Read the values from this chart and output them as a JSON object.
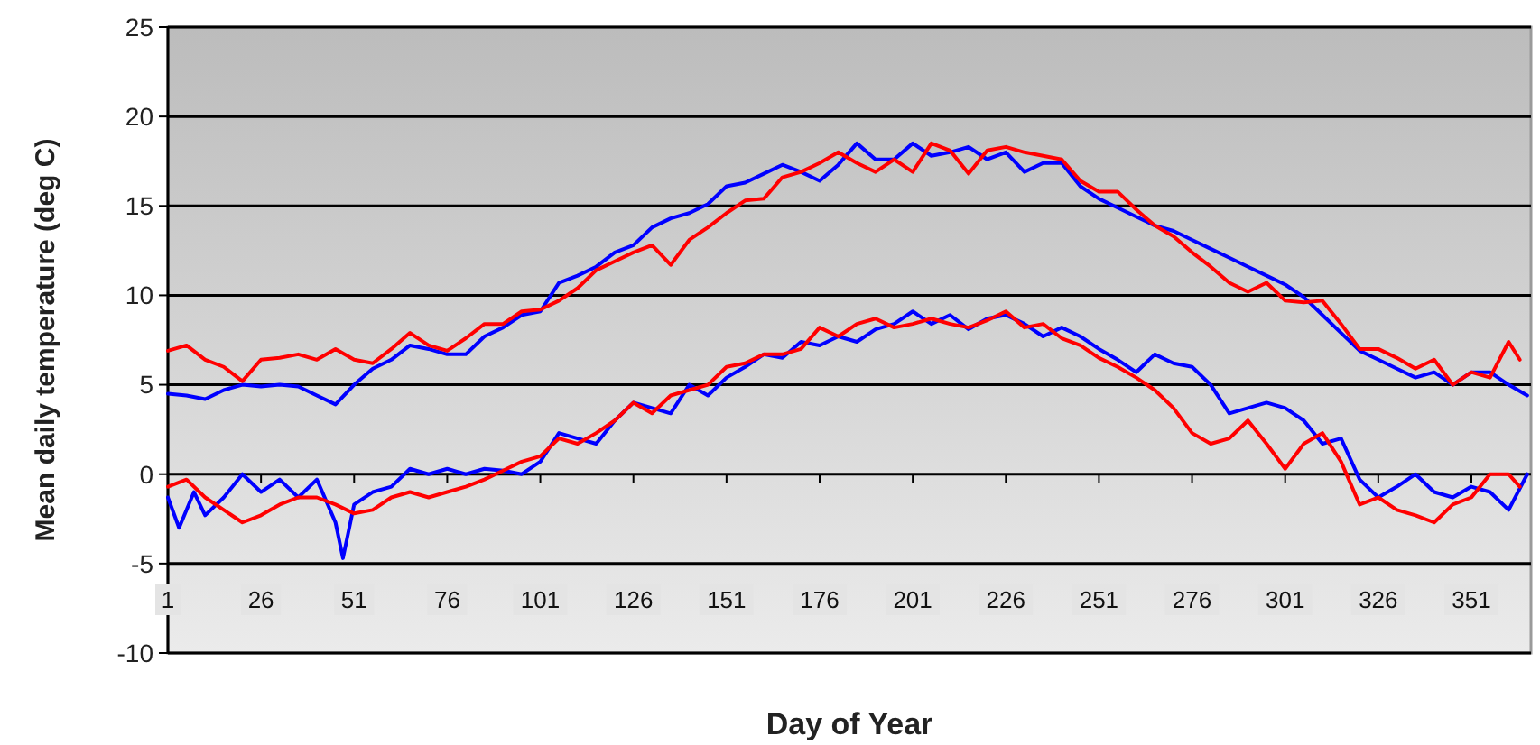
{
  "chart_data": {
    "type": "line",
    "xlabel": "Day of Year",
    "ylabel": "Mean daily temperature (deg C)",
    "xlim": [
      1,
      367
    ],
    "ylim": [
      -10,
      25
    ],
    "xticks": [
      1,
      26,
      51,
      76,
      101,
      126,
      151,
      176,
      201,
      226,
      251,
      276,
      301,
      326,
      351
    ],
    "yticks": [
      -10,
      -5,
      0,
      5,
      10,
      15,
      20,
      25
    ],
    "grid": "y",
    "marker": "none",
    "line_style": "solid",
    "series": [
      {
        "color": "#0000ff",
        "x": [
          1,
          6,
          11,
          16,
          21,
          26,
          31,
          36,
          41,
          46,
          51,
          56,
          61,
          66,
          71,
          76,
          81,
          86,
          91,
          96,
          101,
          106,
          111,
          116,
          121,
          126,
          131,
          136,
          141,
          146,
          151,
          156,
          161,
          166,
          171,
          176,
          181,
          186,
          191,
          196,
          201,
          206,
          211,
          216,
          221,
          226,
          231,
          236,
          241,
          246,
          251,
          256,
          261,
          266,
          271,
          276,
          281,
          286,
          291,
          296,
          301,
          306,
          311,
          316,
          321,
          326,
          331,
          336,
          341,
          346,
          351,
          356,
          361,
          366
        ],
        "values": [
          4.5,
          4.4,
          4.2,
          4.7,
          5.0,
          4.9,
          5.0,
          4.9,
          4.4,
          3.9,
          5.0,
          5.9,
          6.4,
          7.2,
          7.0,
          6.7,
          6.7,
          7.7,
          8.2,
          8.9,
          9.1,
          10.7,
          11.1,
          11.6,
          12.4,
          12.8,
          13.8,
          14.3,
          14.6,
          15.1,
          16.1,
          16.3,
          16.8,
          17.3,
          16.9,
          16.4,
          17.3,
          18.5,
          17.6,
          17.6,
          18.5,
          17.8,
          18.0,
          18.3,
          17.6,
          18.0,
          16.9,
          17.4,
          17.4,
          16.1,
          15.4,
          14.9,
          14.4,
          13.9,
          13.6,
          13.1,
          12.6,
          12.1,
          11.6,
          11.1,
          10.6,
          9.9,
          8.9,
          7.9,
          6.9,
          6.4,
          5.9,
          5.4,
          5.7,
          5.0,
          5.7,
          5.7,
          5.0,
          4.4
        ]
      },
      {
        "color": "#ff0000",
        "x": [
          1,
          6,
          11,
          16,
          21,
          26,
          31,
          36,
          41,
          46,
          51,
          56,
          61,
          66,
          71,
          76,
          81,
          86,
          91,
          96,
          101,
          106,
          111,
          116,
          121,
          126,
          131,
          136,
          141,
          146,
          151,
          156,
          161,
          166,
          171,
          176,
          181,
          186,
          191,
          196,
          201,
          206,
          211,
          216,
          221,
          226,
          231,
          236,
          241,
          246,
          251,
          256,
          261,
          266,
          271,
          276,
          281,
          286,
          291,
          296,
          301,
          306,
          311,
          316,
          321,
          326,
          331,
          336,
          341,
          346,
          351,
          356,
          361,
          364
        ],
        "values": [
          6.9,
          7.2,
          6.4,
          6.0,
          5.2,
          6.4,
          6.5,
          6.7,
          6.4,
          7.0,
          6.4,
          6.2,
          7.0,
          7.9,
          7.2,
          6.9,
          7.6,
          8.4,
          8.4,
          9.1,
          9.2,
          9.7,
          10.4,
          11.4,
          11.9,
          12.4,
          12.8,
          11.7,
          13.1,
          13.8,
          14.6,
          15.3,
          15.4,
          16.6,
          16.9,
          17.4,
          18.0,
          17.4,
          16.9,
          17.6,
          16.9,
          18.5,
          18.1,
          16.8,
          18.1,
          18.3,
          18.0,
          17.8,
          17.6,
          16.4,
          15.8,
          15.8,
          14.8,
          13.9,
          13.3,
          12.4,
          11.6,
          10.7,
          10.2,
          10.7,
          9.7,
          9.6,
          9.7,
          8.4,
          7.0,
          7.0,
          6.5,
          5.9,
          6.4,
          5.0,
          5.7,
          5.4,
          7.4,
          6.4
        ]
      },
      {
        "color": "#0000ff",
        "x": [
          1,
          4,
          8,
          11,
          16,
          21,
          26,
          31,
          36,
          41,
          46,
          48,
          51,
          56,
          61,
          66,
          71,
          76,
          81,
          86,
          91,
          96,
          101,
          106,
          111,
          116,
          121,
          126,
          131,
          136,
          141,
          146,
          151,
          156,
          161,
          166,
          171,
          176,
          181,
          186,
          191,
          196,
          201,
          206,
          211,
          216,
          221,
          226,
          231,
          236,
          241,
          246,
          251,
          256,
          261,
          266,
          271,
          276,
          281,
          286,
          291,
          296,
          301,
          306,
          311,
          316,
          321,
          326,
          331,
          336,
          341,
          346,
          351,
          356,
          361,
          366
        ],
        "values": [
          -1.3,
          -3.0,
          -1.0,
          -2.3,
          -1.3,
          0,
          -1.0,
          -0.3,
          -1.3,
          -0.3,
          -2.7,
          -4.7,
          -1.7,
          -1.0,
          -0.7,
          0.3,
          0,
          0.3,
          0,
          0.3,
          0.2,
          0,
          0.7,
          2.3,
          2.0,
          1.7,
          3.0,
          4.0,
          3.7,
          3.4,
          5.0,
          4.4,
          5.4,
          6.0,
          6.7,
          6.5,
          7.4,
          7.2,
          7.7,
          7.4,
          8.1,
          8.4,
          9.1,
          8.4,
          8.9,
          8.1,
          8.7,
          8.9,
          8.4,
          7.7,
          8.2,
          7.7,
          7.0,
          6.4,
          5.7,
          6.7,
          6.2,
          6.0,
          5.0,
          3.4,
          3.7,
          4.0,
          3.7,
          3.0,
          1.7,
          2.0,
          -0.3,
          -1.3,
          -0.7,
          0,
          -1.0,
          -1.3,
          -0.7,
          -1.0,
          -2.0,
          0
        ]
      },
      {
        "color": "#ff0000",
        "x": [
          1,
          6,
          11,
          16,
          21,
          26,
          31,
          36,
          41,
          46,
          51,
          56,
          61,
          66,
          71,
          76,
          81,
          86,
          91,
          96,
          101,
          106,
          111,
          116,
          121,
          126,
          131,
          136,
          141,
          146,
          151,
          156,
          161,
          166,
          171,
          176,
          181,
          186,
          191,
          196,
          201,
          206,
          211,
          216,
          221,
          226,
          231,
          236,
          241,
          246,
          251,
          256,
          261,
          266,
          271,
          276,
          281,
          286,
          291,
          296,
          301,
          306,
          311,
          316,
          321,
          326,
          331,
          336,
          341,
          346,
          351,
          356,
          361,
          364
        ],
        "values": [
          -0.7,
          -0.3,
          -1.3,
          -2.0,
          -2.7,
          -2.3,
          -1.7,
          -1.3,
          -1.3,
          -1.7,
          -2.2,
          -2.0,
          -1.3,
          -1.0,
          -1.3,
          -1.0,
          -0.7,
          -0.3,
          0.2,
          0.7,
          1.0,
          2.0,
          1.7,
          2.3,
          3.0,
          4.0,
          3.4,
          4.4,
          4.7,
          5.0,
          6.0,
          6.2,
          6.7,
          6.7,
          7.0,
          8.2,
          7.7,
          8.4,
          8.7,
          8.2,
          8.4,
          8.7,
          8.4,
          8.2,
          8.6,
          9.1,
          8.2,
          8.4,
          7.6,
          7.2,
          6.5,
          6.0,
          5.4,
          4.7,
          3.7,
          2.3,
          1.7,
          2.0,
          3.0,
          1.7,
          0.3,
          1.7,
          2.3,
          0.7,
          -1.7,
          -1.3,
          -2.0,
          -2.3,
          -2.7,
          -1.7,
          -1.3,
          0,
          0,
          -0.7
        ]
      }
    ]
  }
}
